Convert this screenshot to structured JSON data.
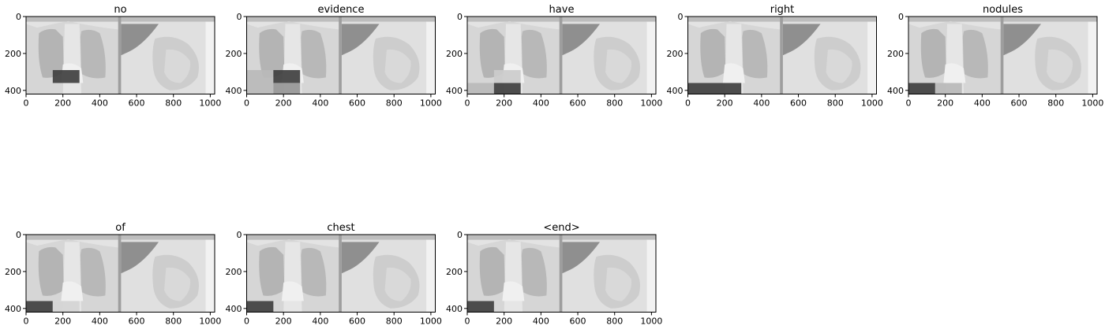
{
  "chart_data": {
    "type": "heatmap",
    "description_source": "attention maps over chest x-ray image, one panel per generated word",
    "image_extent": {
      "x": [
        0,
        1024
      ],
      "y": [
        0,
        420
      ]
    },
    "xticks": [
      0,
      200,
      400,
      600,
      800,
      1000
    ],
    "yticks": [
      0,
      200,
      400
    ],
    "grid": false,
    "colormap": "gray",
    "panels": [
      {
        "title": "no",
        "attention_regions": [
          {
            "x": [
              145,
              290
            ],
            "y": [
              290,
              360
            ],
            "level": 0.95
          }
        ]
      },
      {
        "title": "evidence",
        "attention_regions": [
          {
            "x": [
              0,
              145
            ],
            "y": [
              290,
              420
            ],
            "level": 0.25
          },
          {
            "x": [
              145,
              290
            ],
            "y": [
              290,
              360
            ],
            "level": 0.95
          },
          {
            "x": [
              145,
              290
            ],
            "y": [
              360,
              420
            ],
            "level": 0.45
          }
        ]
      },
      {
        "title": "have",
        "attention_regions": [
          {
            "x": [
              0,
              145
            ],
            "y": [
              360,
              420
            ],
            "level": 0.25
          },
          {
            "x": [
              145,
              290
            ],
            "y": [
              290,
              360
            ],
            "level": 0.15
          },
          {
            "x": [
              145,
              290
            ],
            "y": [
              360,
              420
            ],
            "level": 0.95
          }
        ]
      },
      {
        "title": "right",
        "attention_regions": [
          {
            "x": [
              0,
              290
            ],
            "y": [
              360,
              420
            ],
            "level": 0.95
          }
        ]
      },
      {
        "title": "nodules",
        "attention_regions": [
          {
            "x": [
              0,
              145
            ],
            "y": [
              360,
              420
            ],
            "level": 0.95
          },
          {
            "x": [
              145,
              290
            ],
            "y": [
              360,
              420
            ],
            "level": 0.25
          }
        ]
      },
      {
        "title": "of",
        "attention_regions": [
          {
            "x": [
              0,
              145
            ],
            "y": [
              360,
              420
            ],
            "level": 0.95
          },
          {
            "x": [
              145,
              290
            ],
            "y": [
              360,
              420
            ],
            "level": 0.1
          }
        ]
      },
      {
        "title": "chest",
        "attention_regions": [
          {
            "x": [
              0,
              145
            ],
            "y": [
              360,
              420
            ],
            "level": 0.95
          }
        ]
      },
      {
        "title": "<end>",
        "attention_regions": [
          {
            "x": [
              0,
              145
            ],
            "y": [
              360,
              420
            ],
            "level": 0.95
          }
        ]
      }
    ]
  },
  "colors": {
    "background_image_light": "#e6e6e6",
    "background_image_mid": "#bdbdbd",
    "attention_dark": "#3a3a3a"
  }
}
